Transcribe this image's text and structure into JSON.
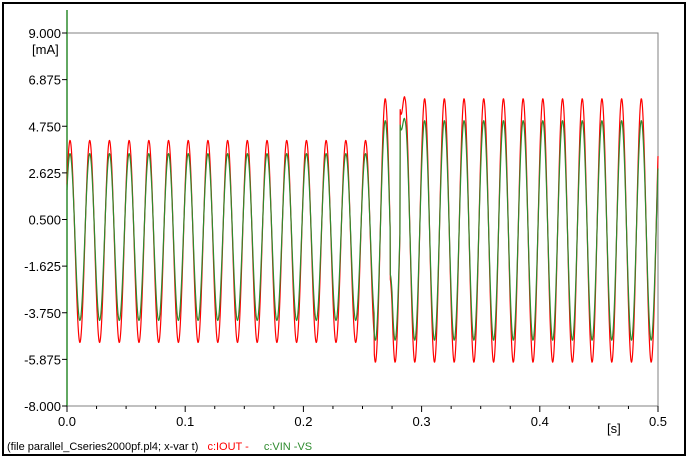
{
  "chart_data": {
    "type": "line",
    "title": "",
    "xlabel": "[s]",
    "ylabel": "[mA]",
    "xlim": [
      0.0,
      0.5
    ],
    "ylim": [
      -8.0,
      9.0
    ],
    "x_ticks": [
      "0.0",
      "0.1",
      "0.2",
      "0.3",
      "0.4",
      "0.5"
    ],
    "y_ticks": [
      "9.000",
      "6.875",
      "4.750",
      "2.625",
      "0.500",
      "-1.625",
      "-3.750",
      "-5.875",
      "-8.000"
    ],
    "grid": false,
    "legend_position": "bottom-left",
    "caption": {
      "file": "(file parallel_Cseries2000pf.pl4; x-var t)",
      "series_labels": [
        "c:IOUT -",
        "c:VIN  -VS"
      ]
    },
    "series": [
      {
        "name": "c:IOUT -",
        "color": "#ff0000",
        "frequency_hz": 60,
        "segments": [
          {
            "t_start": 0.0,
            "t_end": 0.26,
            "offset": -0.5,
            "amplitude": 4.6
          },
          {
            "t_start": 0.26,
            "t_end": 0.5,
            "offset": 0.0,
            "amplitude": 6.0
          }
        ],
        "extremes": {
          "max": 7.9,
          "min": -6.9,
          "max_t": 0.28,
          "min_t": 0.27
        }
      },
      {
        "name": "c:VIN  -VS",
        "color": "#2e8b2e",
        "frequency_hz": 60,
        "segments": [
          {
            "t_start": 0.0,
            "t_end": 0.26,
            "offset": -0.3,
            "amplitude": 3.8
          },
          {
            "t_start": 0.26,
            "t_end": 0.5,
            "offset": 0.0,
            "amplitude": 5.0
          }
        ],
        "extremes": {
          "max": 6.9,
          "min": -6.3,
          "max_t": 0.28,
          "min_t": 0.27
        }
      }
    ]
  }
}
